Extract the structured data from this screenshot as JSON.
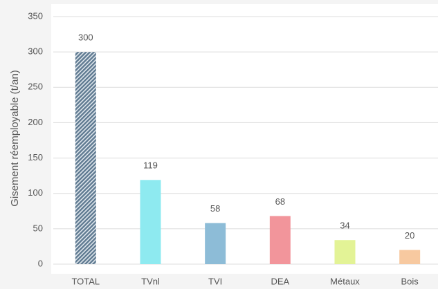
{
  "chart_data": {
    "type": "bar",
    "ylabel": "Gisement réemployable (t/an)",
    "categories": [
      "TOTAL",
      "TVnl",
      "TVI",
      "DEA",
      "Métaux",
      "Bois"
    ],
    "values": [
      300,
      119,
      58,
      68,
      34,
      20
    ],
    "colors": [
      "#5f7a91",
      "#8eeaf0",
      "#8dbcd7",
      "#f2959b",
      "#e3f396",
      "#f7c9a0"
    ],
    "hatch": [
      true,
      false,
      false,
      false,
      false,
      false
    ],
    "ylim": [
      0,
      350
    ],
    "yticks": [
      0,
      50,
      100,
      150,
      200,
      250,
      300,
      350
    ],
    "grid": true
  }
}
